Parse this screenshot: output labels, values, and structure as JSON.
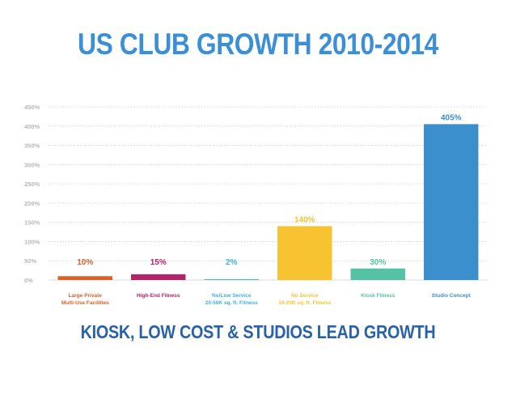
{
  "header": {
    "title": "US CLUB GROWTH 2010-2014"
  },
  "footer": {
    "subtitle": "KIOSK, LOW COST & STUDIOS LEAD GROWTH"
  },
  "chart_data": {
    "type": "bar",
    "title": "US CLUB GROWTH 2010-2014",
    "xlabel": "",
    "ylabel": "",
    "ylim": [
      0,
      450
    ],
    "y_ticks": [
      0,
      50,
      100,
      150,
      200,
      250,
      300,
      350,
      400,
      450
    ],
    "y_tick_labels": [
      "0%",
      "50%",
      "100%",
      "150%",
      "200%",
      "250%",
      "300%",
      "350%",
      "400%",
      "450%"
    ],
    "grid": true,
    "categories": [
      [
        "Large Private",
        "Multi-Use Facilities"
      ],
      [
        "High-End Fitness"
      ],
      [
        "No/Low Service",
        "20-50K sq. ft. Fitness"
      ],
      [
        "No Service",
        "10-20K sq. ft. Fitness"
      ],
      [
        "Kiosk Fitness"
      ],
      [
        "Studio Concept"
      ]
    ],
    "values": [
      10,
      15,
      2,
      140,
      30,
      405
    ],
    "value_labels": [
      "10%",
      "15%",
      "2%",
      "140%",
      "30%",
      "405%"
    ],
    "colors": [
      "#d9602b",
      "#b0246a",
      "#3fb0d8",
      "#f7c331",
      "#55c2a6",
      "#3a8fcc"
    ]
  }
}
